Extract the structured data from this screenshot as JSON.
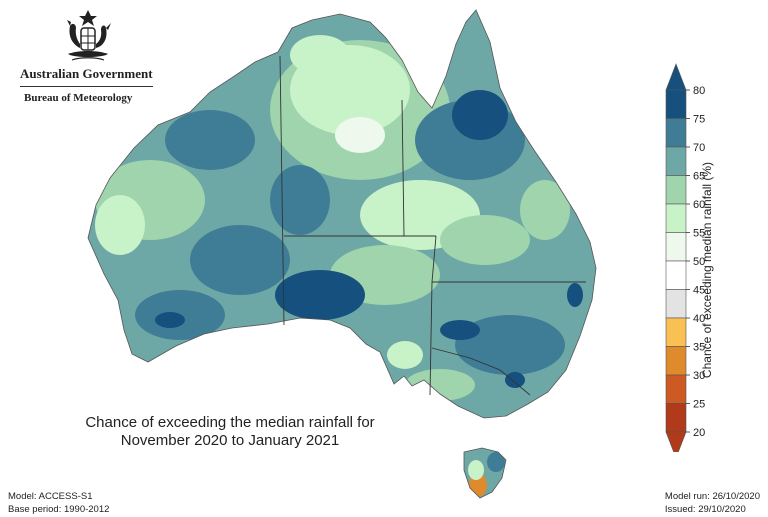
{
  "branding": {
    "government": "Australian Government",
    "agency": "Bureau of Meteorology"
  },
  "map": {
    "title_line1": "Chance of exceeding the median rainfall for",
    "title_line2": "November 2020 to January 2021"
  },
  "legend": {
    "title": "Chance of exceeding median rainfall (%)",
    "ticks": [
      "80",
      "75",
      "70",
      "65",
      "60",
      "55",
      "50",
      "45",
      "40",
      "35",
      "30",
      "25",
      "20"
    ],
    "bins": [
      {
        "range": "75-80",
        "color": "#15507e"
      },
      {
        "range": "70-75",
        "color": "#3f7d96"
      },
      {
        "range": "65-70",
        "color": "#6ea8a6"
      },
      {
        "range": "60-65",
        "color": "#9fd4ad"
      },
      {
        "range": "55-60",
        "color": "#c8f2c8"
      },
      {
        "range": "50-55",
        "color": "#eef8ec"
      },
      {
        "range": "45-50",
        "color": "#ffffff"
      },
      {
        "range": "40-45",
        "color": "#e3e3e3"
      },
      {
        "range": "35-40",
        "color": "#f9c153"
      },
      {
        "range": "30-35",
        "color": "#e08a2e"
      },
      {
        "range": "25-30",
        "color": "#cc5a22"
      },
      {
        "range": "20-25",
        "color": "#b03a1a"
      }
    ]
  },
  "footer": {
    "model": "Model: ACCESS-S1",
    "base_period": "Base period: 1990-2012",
    "model_run": "Model run: 26/10/2020",
    "issued": "Issued: 29/10/2020"
  }
}
